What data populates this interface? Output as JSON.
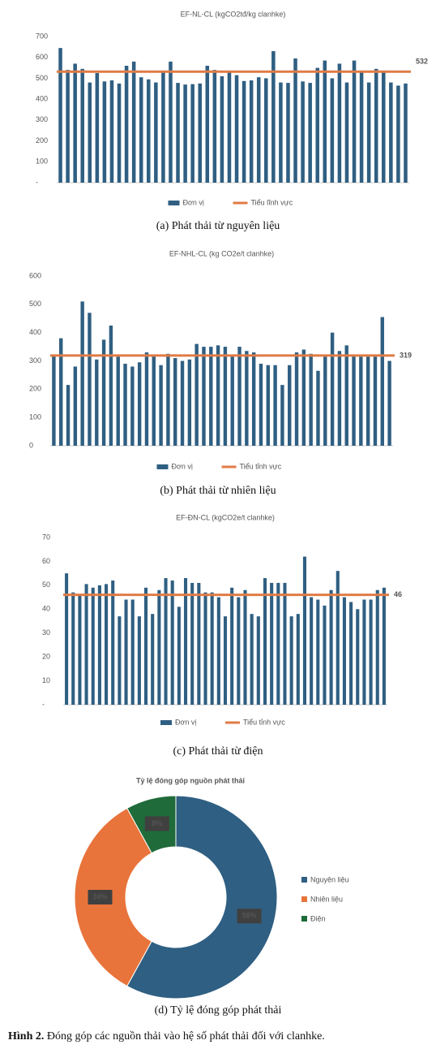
{
  "chart_data": [
    {
      "type": "bar",
      "title": "EF-NL-CL (kgCO2tđ/kg clanhke)",
      "caption": "(a) Phát thải từ nguyên liệu",
      "series": [
        {
          "name": "Đơn vị",
          "color": "#2f5f82",
          "values": [
            645,
            540,
            570,
            545,
            480,
            525,
            485,
            490,
            475,
            560,
            580,
            505,
            495,
            480,
            530,
            580,
            478,
            470,
            472,
            475,
            560,
            540,
            510,
            530,
            515,
            487,
            490,
            505,
            500,
            630,
            480,
            478,
            595,
            485,
            478,
            550,
            585,
            500,
            570,
            480,
            585,
            530,
            480,
            545,
            530,
            480,
            465,
            475
          ]
        }
      ],
      "reference_line": {
        "name": "Tiểu lĩnh vực",
        "value": 532,
        "color": "#e07b45"
      },
      "ylim": [
        0,
        700
      ],
      "yticks": [
        {
          "value": 0,
          "label": "-"
        },
        100,
        200,
        300,
        400,
        500,
        600,
        700
      ]
    },
    {
      "type": "bar",
      "title": "EF-NHL-CL (kg CO2e/t clanhke)",
      "caption": "(b) Phát thải từ nhiên liệu",
      "series": [
        {
          "name": "Đơn vị",
          "color": "#2f5f82",
          "values": [
            320,
            380,
            215,
            280,
            510,
            470,
            305,
            375,
            425,
            315,
            290,
            280,
            295,
            330,
            320,
            285,
            325,
            310,
            300,
            305,
            360,
            350,
            350,
            355,
            350,
            315,
            350,
            335,
            330,
            290,
            285,
            285,
            215,
            285,
            330,
            340,
            325,
            265,
            315,
            400,
            335,
            355,
            320,
            315,
            315,
            315,
            455,
            300
          ]
        }
      ],
      "reference_line": {
        "name": "Tiểu tỉnh vực",
        "value": 319,
        "color": "#e07b45"
      },
      "ylim": [
        0,
        600
      ],
      "yticks": [
        0,
        100,
        200,
        300,
        400,
        500,
        600
      ]
    },
    {
      "type": "bar",
      "title": "EF-ĐN-CL (kgCO2e/t clanhke)",
      "caption": "(c) Phát thải từ điện",
      "series": [
        {
          "name": "Đơn vị",
          "color": "#2f5f82",
          "values": [
            55,
            47,
            46,
            50.5,
            49,
            50,
            50.5,
            52,
            37,
            44,
            44,
            37,
            49,
            38,
            48,
            53,
            52,
            41,
            53,
            51,
            51,
            47,
            47,
            45,
            37,
            49,
            45,
            48,
            38,
            37,
            53,
            51,
            51,
            51,
            37,
            38,
            62,
            45,
            44,
            41.5,
            48,
            56,
            45,
            43,
            40,
            44,
            44,
            48,
            49
          ]
        }
      ],
      "reference_line": {
        "name": "Tiểu tỉnh vực",
        "value": 46,
        "color": "#e07b45"
      },
      "ylim": [
        0,
        70
      ],
      "yticks": [
        {
          "value": 0,
          "label": "-"
        },
        10,
        20,
        30,
        40,
        50,
        60,
        70
      ]
    },
    {
      "type": "pie",
      "title": "Tỷ lệ đóng góp nguồn phát thải",
      "caption": "(d) Tỷ lệ đóng góp phát thải",
      "categories": [
        "Nguyên liệu",
        "Nhiên liệu",
        "Điện"
      ],
      "values": [
        58,
        34,
        8
      ],
      "value_labels": [
        "58%",
        "34%",
        "8%"
      ],
      "colors": [
        "#2f5f82",
        "#e8743b",
        "#1f6b3a"
      ]
    }
  ],
  "figure": {
    "label": "Hình 2.",
    "text": "Đóng góp các nguồn thải vào hệ số phát thải đối với clanhke."
  }
}
